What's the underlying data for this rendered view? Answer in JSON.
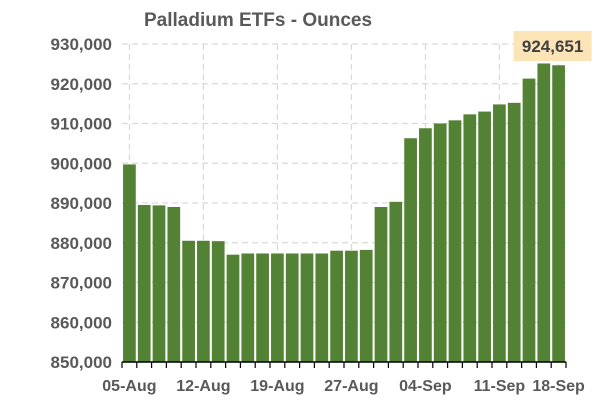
{
  "chart_data": {
    "type": "bar",
    "title": "Palladium ETFs - Ounces",
    "xlabel": "",
    "ylabel": "",
    "ylim": [
      850000,
      930000
    ],
    "y_ticks": [
      "850,000",
      "860,000",
      "870,000",
      "880,000",
      "890,000",
      "900,000",
      "910,000",
      "920,000",
      "930,000"
    ],
    "x_tick_labels": [
      "05-Aug",
      "12-Aug",
      "19-Aug",
      "27-Aug",
      "04-Sep",
      "11-Sep",
      "18-Sep"
    ],
    "x_tick_bar_index": [
      0,
      5,
      10,
      15,
      20,
      25,
      29
    ],
    "grid": true,
    "colors": {
      "bar": "#548235",
      "callout_bg": "#FCE4B6",
      "grid": "#D9D9D9",
      "text": "#595959"
    },
    "series": [
      {
        "values": [
          899700,
          889500,
          889400,
          889000,
          880500,
          880500,
          880400,
          877000,
          877300,
          877300,
          877300,
          877300,
          877300,
          877300,
          878000,
          878000,
          878200,
          889000,
          890300,
          906300,
          908800,
          910000,
          910800,
          912300,
          913000,
          914800,
          915200,
          921300,
          925100,
          924651
        ]
      }
    ],
    "annotation": {
      "text": "924,651",
      "bar_index": 29
    }
  }
}
